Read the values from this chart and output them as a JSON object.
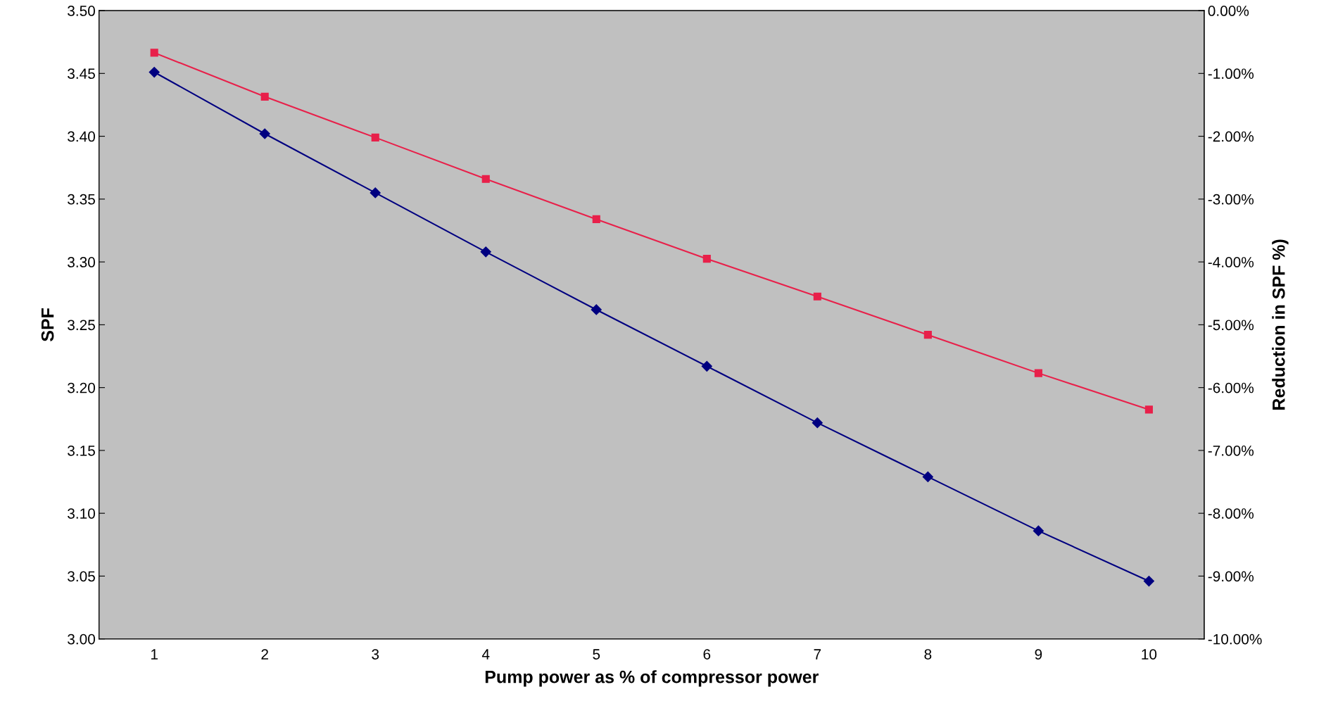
{
  "chart_data": {
    "type": "line",
    "xlabel": "Pump power as % of compressor power",
    "ylabel": "SPF",
    "y2label": "Reduction in SPF %)",
    "categories": [
      "1",
      "2",
      "3",
      "4",
      "5",
      "6",
      "7",
      "8",
      "9",
      "10"
    ],
    "series": [
      {
        "color": "#000080",
        "marker": "diamond",
        "values": [
          3.451,
          3.402,
          3.355,
          3.308,
          3.262,
          3.217,
          3.172,
          3.129,
          3.086,
          3.046
        ]
      },
      {
        "color": "#e8204a",
        "marker": "square",
        "axis": "y2",
        "values": [
          -0.67,
          -1.37,
          -2.02,
          -2.68,
          -3.32,
          -3.95,
          -4.55,
          -5.16,
          -5.77,
          -6.35
        ]
      }
    ],
    "ylim": [
      3.0,
      3.5
    ],
    "yticks": [
      {
        "value": 3.0,
        "label": "3.00"
      },
      {
        "value": 3.05,
        "label": "3.05"
      },
      {
        "value": 3.1,
        "label": "3.10"
      },
      {
        "value": 3.15,
        "label": "3.15"
      },
      {
        "value": 3.2,
        "label": "3.20"
      },
      {
        "value": 3.25,
        "label": "3.25"
      },
      {
        "value": 3.3,
        "label": "3.30"
      },
      {
        "value": 3.35,
        "label": "3.35"
      },
      {
        "value": 3.4,
        "label": "3.40"
      },
      {
        "value": 3.45,
        "label": "3.45"
      },
      {
        "value": 3.5,
        "label": "3.50"
      }
    ],
    "y2lim": [
      -10,
      0
    ],
    "y2ticks": [
      {
        "value": -10,
        "label": "-10.00%"
      },
      {
        "value": -9,
        "label": "-9.00%"
      },
      {
        "value": -8,
        "label": "-8.00%"
      },
      {
        "value": -7,
        "label": "-7.00%"
      },
      {
        "value": -6,
        "label": "-6.00%"
      },
      {
        "value": -5,
        "label": "-5.00%"
      },
      {
        "value": -4,
        "label": "-4.00%"
      },
      {
        "value": -3,
        "label": "-3.00%"
      },
      {
        "value": -2,
        "label": "-2.00%"
      },
      {
        "value": -1,
        "label": "-1.00%"
      },
      {
        "value": 0,
        "label": "0.00%"
      }
    ],
    "grid": false,
    "legend": false
  }
}
